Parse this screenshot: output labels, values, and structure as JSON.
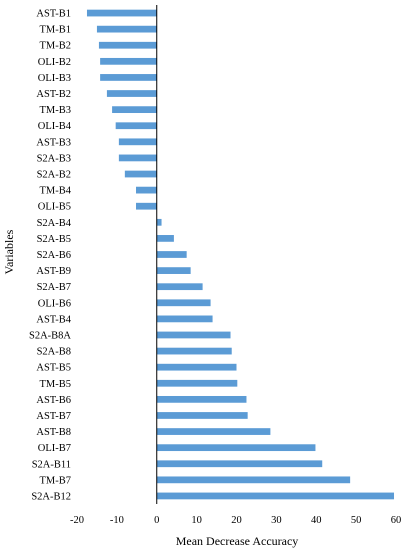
{
  "chart_data": {
    "type": "bar",
    "orientation": "horizontal",
    "title": "",
    "xlabel": "Mean Decrease Accuracy",
    "ylabel": "Variables",
    "xlim": [
      -20,
      60
    ],
    "xticks": [
      -20,
      -10,
      0,
      10,
      20,
      30,
      40,
      50,
      60
    ],
    "grid": false,
    "bar_color": "#5b9bd5",
    "categories": [
      "AST-B1",
      "TM-B1",
      "TM-B2",
      "OLI-B2",
      "OLI-B3",
      "AST-B2",
      "TM-B3",
      "OLI-B4",
      "AST-B3",
      "S2A-B3",
      "S2A-B2",
      "TM-B4",
      "OLI-B5",
      "S2A-B4",
      "S2A-B5",
      "S2A-B6",
      "AST-B9",
      "S2A-B7",
      "OLI-B6",
      "AST-B4",
      "S2A-B8A",
      "S2A-B8",
      "AST-B5",
      "TM-B5",
      "AST-B6",
      "AST-B7",
      "AST-B8",
      "OLI-B7",
      "S2A-B11",
      "TM-B7",
      "S2A-B12"
    ],
    "values": [
      -17.5,
      -15,
      -14.5,
      -14.2,
      -14.2,
      -12.5,
      -11.2,
      -10.3,
      -9.5,
      -9.5,
      -8,
      -5.2,
      -5.2,
      1.2,
      4.3,
      7.5,
      8.5,
      11.5,
      13.5,
      14,
      18.5,
      18.8,
      20,
      20.2,
      22.5,
      22.8,
      28.5,
      39.8,
      41.5,
      48.5,
      59.5
    ]
  }
}
